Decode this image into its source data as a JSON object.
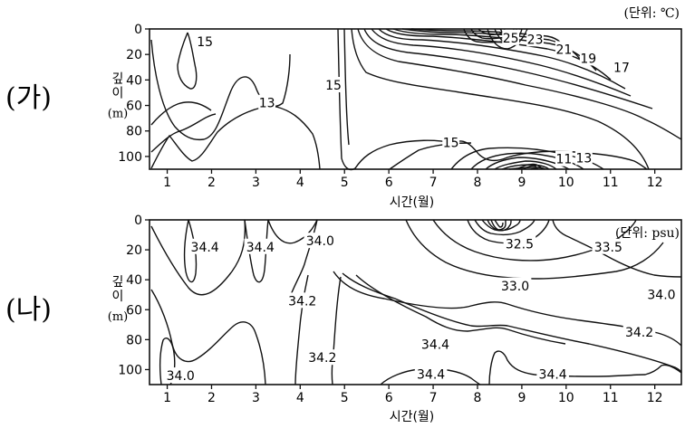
{
  "chart_data": [
    {
      "type": "contour",
      "panel_label": "(가)",
      "unit_label": "(단위: ℃)",
      "ylabel": "깊이",
      "ylabel_unit": "(m)",
      "xlabel": "시간(월)",
      "x_ticks": [
        "1",
        "2",
        "3",
        "4",
        "5",
        "6",
        "7",
        "8",
        "9",
        "10",
        "11",
        "12"
      ],
      "y_ticks": [
        "0",
        "20",
        "40",
        "60",
        "80",
        "100"
      ],
      "ylim": [
        0,
        110
      ],
      "xlim": [
        0.6,
        12.6
      ],
      "contour_labels": [
        {
          "text": "15",
          "month": 1.85,
          "depth": 10
        },
        {
          "text": "13",
          "month": 3.25,
          "depth": 58
        },
        {
          "text": "15",
          "month": 4.75,
          "depth": 44
        },
        {
          "text": "25",
          "month": 8.75,
          "depth": 7
        },
        {
          "text": "23",
          "month": 9.3,
          "depth": 8
        },
        {
          "text": "21",
          "month": 9.95,
          "depth": 16
        },
        {
          "text": "19",
          "month": 10.5,
          "depth": 23
        },
        {
          "text": "17",
          "month": 11.25,
          "depth": 30
        },
        {
          "text": "15",
          "month": 7.4,
          "depth": 89
        },
        {
          "text": "11",
          "month": 9.95,
          "depth": 102
        },
        {
          "text": "13",
          "month": 10.4,
          "depth": 101
        }
      ]
    },
    {
      "type": "contour",
      "panel_label": "(나)",
      "unit_label": "(단위: psu)",
      "ylabel": "깊이",
      "ylabel_unit": "(m)",
      "xlabel": "시간(월)",
      "x_ticks": [
        "1",
        "2",
        "3",
        "4",
        "5",
        "6",
        "7",
        "8",
        "9",
        "10",
        "11",
        "12"
      ],
      "y_ticks": [
        "0",
        "20",
        "40",
        "60",
        "80",
        "100"
      ],
      "ylim": [
        0,
        110
      ],
      "xlim": [
        0.6,
        12.6
      ],
      "contour_labels": [
        {
          "text": "34.4",
          "month": 1.85,
          "depth": 18
        },
        {
          "text": "34.4",
          "month": 3.1,
          "depth": 18
        },
        {
          "text": "34.0",
          "month": 4.45,
          "depth": 14
        },
        {
          "text": "34.2",
          "month": 4.05,
          "depth": 54
        },
        {
          "text": "32.5",
          "month": 8.95,
          "depth": 16
        },
        {
          "text": "33.5",
          "month": 10.95,
          "depth": 18
        },
        {
          "text": "33.0",
          "month": 8.85,
          "depth": 44
        },
        {
          "text": "34.0",
          "month": 12.15,
          "depth": 50
        },
        {
          "text": "34.2",
          "month": 11.65,
          "depth": 75
        },
        {
          "text": "34.4",
          "month": 7.05,
          "depth": 83
        },
        {
          "text": "34.2",
          "month": 4.5,
          "depth": 92
        },
        {
          "text": "34.4",
          "month": 6.95,
          "depth": 103
        },
        {
          "text": "34.4",
          "month": 9.7,
          "depth": 103
        },
        {
          "text": "34.0",
          "month": 1.3,
          "depth": 104
        }
      ]
    }
  ]
}
